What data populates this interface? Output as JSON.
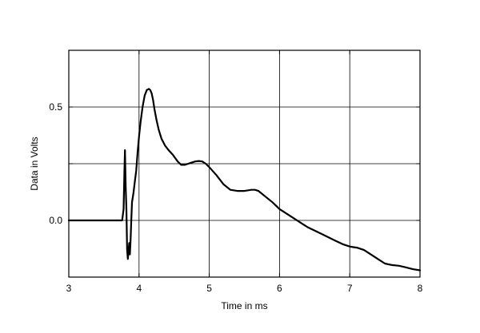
{
  "chart_data": {
    "type": "line",
    "xlabel": "Time in ms",
    "ylabel": "Data in Volts",
    "xlim": [
      3,
      8
    ],
    "ylim": [
      -0.25,
      0.75
    ],
    "x_ticks": [
      3,
      4,
      5,
      6,
      7,
      8
    ],
    "x_tick_labels": [
      "3",
      "4",
      "5",
      "6",
      "7",
      "8"
    ],
    "y_ticks": [
      0.0,
      0.25,
      0.5
    ],
    "y_tick_labels": [
      "0.0",
      "",
      "0.5"
    ],
    "grid": true,
    "line_color": "#000000",
    "series": [
      {
        "x": [
          3.0,
          3.6,
          3.76,
          3.78,
          3.79,
          3.8,
          3.81,
          3.82,
          3.83,
          3.84,
          3.85,
          3.86,
          3.87,
          3.88,
          3.89,
          3.9,
          3.92,
          3.94,
          3.96,
          3.98,
          4.0,
          4.02,
          4.05,
          4.08,
          4.11,
          4.14,
          4.16,
          4.18,
          4.2,
          4.22,
          4.25,
          4.28,
          4.32,
          4.37,
          4.42,
          4.48,
          4.55,
          4.6,
          4.65,
          4.7,
          4.75,
          4.8,
          4.85,
          4.9,
          4.95,
          5.0,
          5.1,
          5.2,
          5.3,
          5.4,
          5.5,
          5.6,
          5.65,
          5.7,
          5.8,
          5.9,
          6.0,
          6.2,
          6.4,
          6.6,
          6.8,
          6.9,
          7.0,
          7.05,
          7.1,
          7.2,
          7.3,
          7.4,
          7.5,
          7.6,
          7.7,
          7.8,
          7.9,
          8.0
        ],
        "y": [
          0.0,
          0.0,
          0.0,
          0.05,
          0.2,
          0.31,
          0.15,
          0.05,
          -0.13,
          -0.17,
          -0.14,
          -0.1,
          -0.15,
          -0.08,
          0.0,
          0.08,
          0.12,
          0.17,
          0.22,
          0.3,
          0.37,
          0.43,
          0.5,
          0.55,
          0.575,
          0.58,
          0.575,
          0.56,
          0.53,
          0.49,
          0.44,
          0.4,
          0.36,
          0.33,
          0.31,
          0.29,
          0.26,
          0.245,
          0.245,
          0.25,
          0.255,
          0.26,
          0.262,
          0.26,
          0.25,
          0.235,
          0.2,
          0.16,
          0.135,
          0.13,
          0.13,
          0.135,
          0.135,
          0.13,
          0.105,
          0.08,
          0.05,
          0.01,
          -0.03,
          -0.06,
          -0.09,
          -0.105,
          -0.115,
          -0.118,
          -0.12,
          -0.13,
          -0.15,
          -0.17,
          -0.19,
          -0.197,
          -0.2,
          -0.207,
          -0.215,
          -0.22
        ]
      }
    ]
  }
}
